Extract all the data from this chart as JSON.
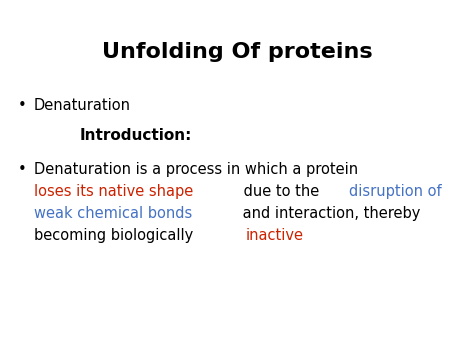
{
  "title": "Unfolding Of proteins",
  "title_fontsize": 16,
  "title_fontweight": "bold",
  "title_color": "#000000",
  "background_color": "#ffffff",
  "bullet1_text": "Denaturation",
  "intro_label": "Introduction:",
  "intro_fontsize": 11,
  "intro_fontweight": "bold",
  "body_fontsize": 10.5,
  "bullet_char": "•",
  "black": "#000000",
  "red": "#cc2200",
  "blue": "#4472c4",
  "line1": "Denaturation is a process in which a protein",
  "line2_seg1": "loses its native shape",
  "line2_seg1_color": "#cc2200",
  "line2_seg2": " due to the ",
  "line2_seg2_color": "#000000",
  "line2_seg3": "disruption of",
  "line2_seg3_color": "#4472c4",
  "line3_seg1": "weak chemical bonds",
  "line3_seg1_color": "#4472c4",
  "line3_seg2": " and interaction, thereby",
  "line3_seg2_color": "#000000",
  "line4_seg1": "becoming biologically ",
  "line4_seg1_color": "#000000",
  "line4_seg2": "inactive",
  "line4_seg2_color": "#cc2200"
}
